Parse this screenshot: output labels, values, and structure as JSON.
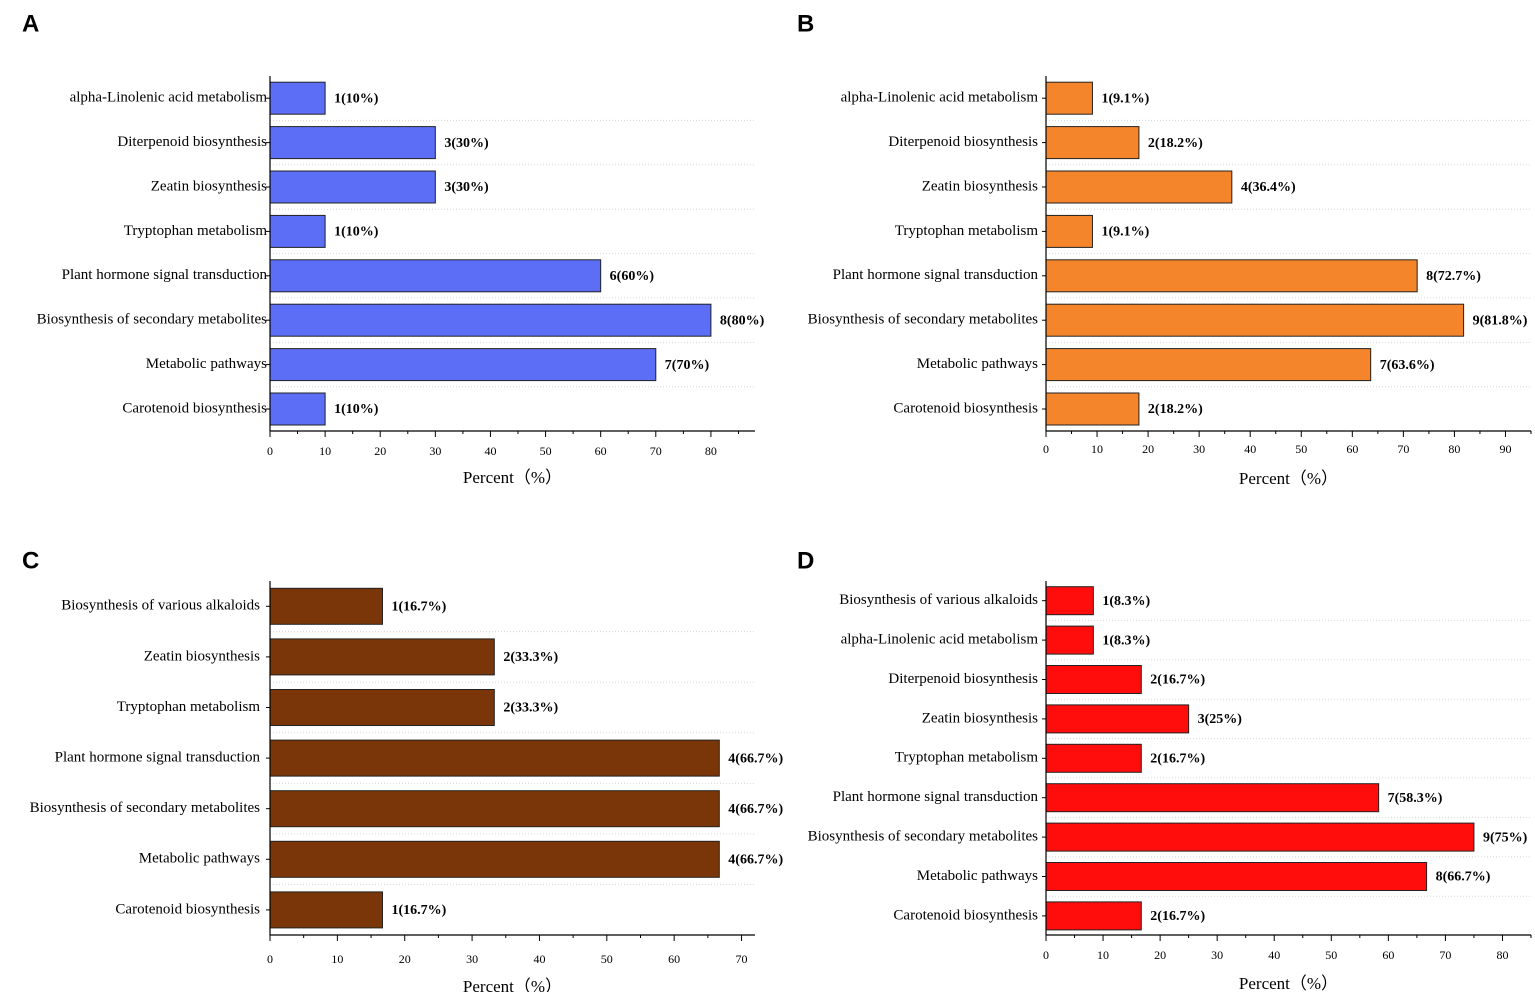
{
  "chart_data": [
    {
      "panel": "A",
      "type": "bar",
      "orientation": "horizontal",
      "color": "#5b6ef5",
      "categories": [
        "alpha-Linolenic acid metabolism",
        "Diterpenoid biosynthesis",
        "Zeatin biosynthesis",
        "Tryptophan metabolism",
        "Plant hormone signal transduction",
        "Biosynthesis of secondary metabolites",
        "Metabolic pathways",
        "Carotenoid biosynthesis"
      ],
      "values": [
        10,
        30,
        30,
        10,
        60,
        80,
        70,
        10
      ],
      "labels": [
        "1(10%)",
        "3(30%)",
        "3(30%)",
        "1(10%)",
        "6(60%)",
        "8(80%)",
        "7(70%)",
        "1(10%)"
      ],
      "xticks": [
        0,
        10,
        20,
        30,
        40,
        50,
        60,
        70,
        80
      ],
      "xlim": [
        0,
        88
      ],
      "xlabel": "Percent（%）"
    },
    {
      "panel": "B",
      "type": "bar",
      "orientation": "horizontal",
      "color": "#f5852a",
      "categories": [
        "alpha-Linolenic acid metabolism",
        "Diterpenoid biosynthesis",
        "Zeatin biosynthesis",
        "Tryptophan metabolism",
        "Plant hormone signal transduction",
        "Biosynthesis of secondary metabolites",
        "Metabolic pathways",
        "Carotenoid biosynthesis"
      ],
      "values": [
        9.1,
        18.2,
        36.4,
        9.1,
        72.7,
        81.8,
        63.6,
        18.2
      ],
      "labels": [
        "1(9.1%)",
        "2(18.2%)",
        "4(36.4%)",
        "1(9.1%)",
        "8(72.7%)",
        "9(81.8%)",
        "7(63.6%)",
        "2(18.2%)"
      ],
      "xticks": [
        0,
        10,
        20,
        30,
        40,
        50,
        60,
        70,
        80,
        90
      ],
      "xlim": [
        0,
        95
      ],
      "xlabel": "Percent（%）"
    },
    {
      "panel": "C",
      "type": "bar",
      "orientation": "horizontal",
      "color": "#7a3608",
      "categories": [
        "Biosynthesis of various alkaloids",
        "Zeatin biosynthesis",
        "Tryptophan metabolism",
        "Plant hormone signal transduction",
        "Biosynthesis of secondary metabolites",
        "Metabolic pathways",
        "Carotenoid biosynthesis"
      ],
      "values": [
        16.7,
        33.3,
        33.3,
        66.7,
        66.7,
        66.7,
        16.7
      ],
      "labels": [
        "1(16.7%)",
        "2(33.3%)",
        "2(33.3%)",
        "4(66.7%)",
        "4(66.7%)",
        "4(66.7%)",
        "1(16.7%)"
      ],
      "xticks": [
        0,
        10,
        20,
        30,
        40,
        50,
        60,
        70
      ],
      "xlim": [
        0,
        72
      ],
      "xlabel": "Percent（%）"
    },
    {
      "panel": "D",
      "type": "bar",
      "orientation": "horizontal",
      "color": "#ff0d0d",
      "categories": [
        "Biosynthesis of various alkaloids",
        "alpha-Linolenic acid metabolism",
        "Diterpenoid biosynthesis",
        "Zeatin biosynthesis",
        "Tryptophan metabolism",
        "Plant hormone signal transduction",
        "Biosynthesis of secondary metabolites",
        "Metabolic pathways",
        "Carotenoid biosynthesis"
      ],
      "values": [
        8.3,
        8.3,
        16.7,
        25,
        16.7,
        58.3,
        75,
        66.7,
        16.7
      ],
      "labels": [
        "1(8.3%)",
        "1(8.3%)",
        "2(16.7%)",
        "3(25%)",
        "2(16.7%)",
        "7(58.3%)",
        "9(75%)",
        "8(66.7%)",
        "2(16.7%)"
      ],
      "xticks": [
        0,
        10,
        20,
        30,
        40,
        50,
        60,
        70,
        80
      ],
      "xlim": [
        0,
        85
      ],
      "xlabel": "Percent（%）"
    }
  ]
}
